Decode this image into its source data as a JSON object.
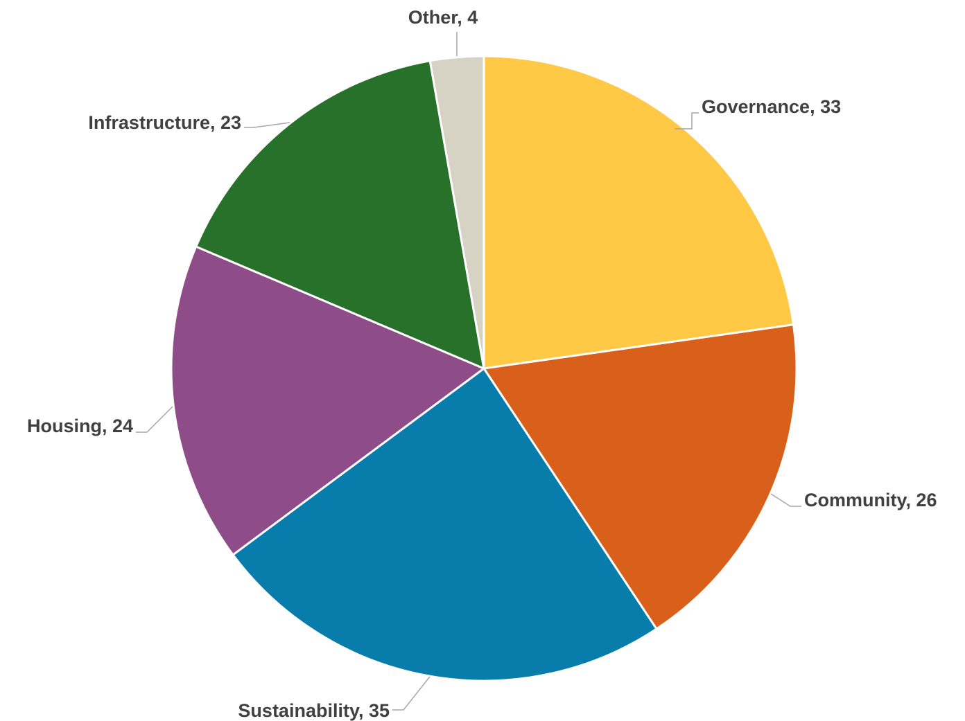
{
  "chart_data": {
    "type": "pie",
    "title": "",
    "start_angle_deg": 0,
    "direction": "clockwise",
    "legend": "none",
    "slices": [
      {
        "name": "Governance",
        "value": 33,
        "color": "#FFC845",
        "label": "Governance, 33"
      },
      {
        "name": "Community",
        "value": 26,
        "color": "#D9601A",
        "label": "Community, 26"
      },
      {
        "name": "Sustainability",
        "value": 35,
        "color": "#087CAA",
        "label": "Sustainability, 35"
      },
      {
        "name": "Housing",
        "value": 24,
        "color": "#8E4D89",
        "label": "Housing, 24"
      },
      {
        "name": "Infrastructure",
        "value": 23,
        "color": "#28712A",
        "label": "Infrastructure, 23"
      },
      {
        "name": "Other",
        "value": 4,
        "color": "#D6D3C4",
        "label": "Other, 4"
      }
    ]
  }
}
